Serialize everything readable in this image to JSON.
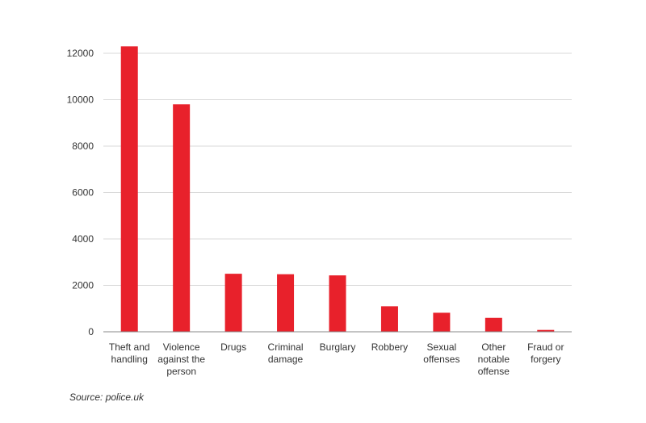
{
  "chart_data": {
    "type": "bar",
    "categories": [
      [
        "Theft and",
        "handling"
      ],
      [
        "Violence",
        "against the",
        "person"
      ],
      [
        "Drugs"
      ],
      [
        "Criminal",
        "damage"
      ],
      [
        "Burglary"
      ],
      [
        "Robbery"
      ],
      [
        "Sexual",
        "offenses"
      ],
      [
        "Other",
        "notable",
        "offense"
      ],
      [
        "Fraud or",
        "forgery"
      ]
    ],
    "values": [
      12300,
      9800,
      2500,
      2480,
      2430,
      1100,
      820,
      600,
      80
    ],
    "yticks": [
      0,
      2000,
      4000,
      6000,
      8000,
      10000,
      12000
    ],
    "ylim": [
      0,
      12000
    ],
    "grid": true,
    "colors": {
      "bar": "#e8212b",
      "grid": "#d9d9d9",
      "axis": "#888888"
    }
  },
  "source": "Source: police.uk"
}
